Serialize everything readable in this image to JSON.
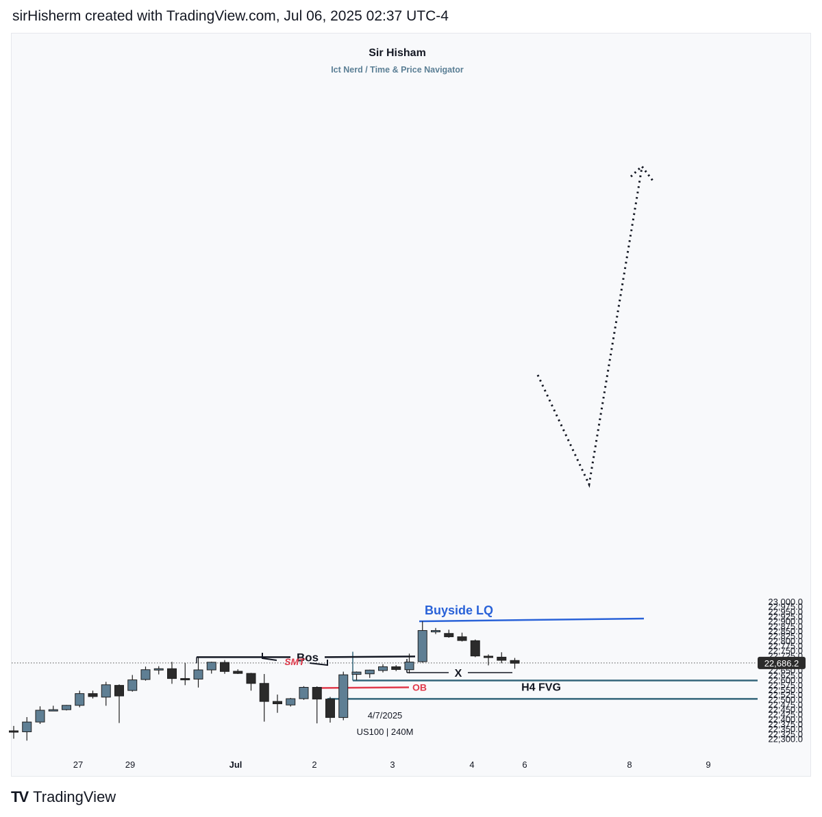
{
  "header": {
    "text": "sirHisherm created with TradingView.com, Jul 06, 2025 02:37 UTC-4"
  },
  "chart_title": {
    "title": "Sir Hisham",
    "subtitle": "Ict Nerd / Time & Price Navigator"
  },
  "footer": {
    "logo_icon": "tradingview-logo-icon",
    "brand": "TradingView"
  },
  "watermark": {
    "date": "4/7/2025",
    "symbol": "US100 | 240M"
  },
  "colors": {
    "bull": "#5f7f94",
    "bear": "#2b2b2b",
    "blue_line": "#2962d8",
    "teal_line": "#33657a",
    "red": "#e0394a"
  },
  "chart_data": {
    "type": "candlestick",
    "title": "Sir Hisham",
    "subtitle": "Ict Nerd / Time & Price Navigator",
    "ylim": [
      22280,
      23020
    ],
    "y_ticks": [
      "22,300.0",
      "22,325.0",
      "22,350.0",
      "22,375.0",
      "22,400.0",
      "22,425.0",
      "22,450.0",
      "22,475.0",
      "22,500.0",
      "22,525.0",
      "22,550.0",
      "22,575.0",
      "22,600.0",
      "22,625.0",
      "22,650.0",
      "22,675.0",
      "22,700.0",
      "22,725.0",
      "22,750.0",
      "22,775.0",
      "22,800.0",
      "22,825.0",
      "22,850.0",
      "22,875.0",
      "22,900.0",
      "22,925.0",
      "22,950.0",
      "22,975.0",
      "23,000.0"
    ],
    "x_ticks": [
      "27",
      "29",
      "Jul",
      "2",
      "3",
      "4",
      "6",
      "8",
      "9"
    ],
    "last_price": {
      "value": 22686.2,
      "label": "22,686.2"
    },
    "candles": [
      {
        "o": 22340,
        "h": 22365,
        "l": 22300,
        "c": 22335
      },
      {
        "o": 22335,
        "h": 22410,
        "l": 22290,
        "c": 22385
      },
      {
        "o": 22385,
        "h": 22465,
        "l": 22375,
        "c": 22445
      },
      {
        "o": 22445,
        "h": 22468,
        "l": 22443,
        "c": 22448
      },
      {
        "o": 22448,
        "h": 22472,
        "l": 22444,
        "c": 22470
      },
      {
        "o": 22470,
        "h": 22545,
        "l": 22460,
        "c": 22530
      },
      {
        "o": 22530,
        "h": 22545,
        "l": 22505,
        "c": 22515
      },
      {
        "o": 22512,
        "h": 22590,
        "l": 22468,
        "c": 22575
      },
      {
        "o": 22572,
        "h": 22577,
        "l": 22380,
        "c": 22518
      },
      {
        "o": 22546,
        "h": 22625,
        "l": 22540,
        "c": 22600
      },
      {
        "o": 22602,
        "h": 22668,
        "l": 22596,
        "c": 22652
      },
      {
        "o": 22651,
        "h": 22670,
        "l": 22628,
        "c": 22657
      },
      {
        "o": 22657,
        "h": 22692,
        "l": 22580,
        "c": 22607
      },
      {
        "o": 22607,
        "h": 22687,
        "l": 22573,
        "c": 22604
      },
      {
        "o": 22604,
        "h": 22712,
        "l": 22561,
        "c": 22651
      },
      {
        "o": 22651,
        "h": 22693,
        "l": 22632,
        "c": 22690
      },
      {
        "o": 22689,
        "h": 22701,
        "l": 22631,
        "c": 22643
      },
      {
        "o": 22644,
        "h": 22654,
        "l": 22630,
        "c": 22633
      },
      {
        "o": 22633,
        "h": 22636,
        "l": 22545,
        "c": 22582
      },
      {
        "o": 22582,
        "h": 22630,
        "l": 22387,
        "c": 22490
      },
      {
        "o": 22490,
        "h": 22525,
        "l": 22432,
        "c": 22478
      },
      {
        "o": 22472,
        "h": 22508,
        "l": 22464,
        "c": 22504
      },
      {
        "o": 22504,
        "h": 22568,
        "l": 22498,
        "c": 22562
      },
      {
        "o": 22562,
        "h": 22567,
        "l": 22378,
        "c": 22502
      },
      {
        "o": 22502,
        "h": 22513,
        "l": 22382,
        "c": 22408
      },
      {
        "o": 22408,
        "h": 22642,
        "l": 22394,
        "c": 22626
      },
      {
        "o": 22628,
        "h": 22643,
        "l": 22598,
        "c": 22640
      },
      {
        "o": 22631,
        "h": 22652,
        "l": 22610,
        "c": 22650
      },
      {
        "o": 22648,
        "h": 22680,
        "l": 22638,
        "c": 22667
      },
      {
        "o": 22667,
        "h": 22675,
        "l": 22645,
        "c": 22653
      },
      {
        "o": 22652,
        "h": 22734,
        "l": 22633,
        "c": 22691
      },
      {
        "o": 22693,
        "h": 22899,
        "l": 22688,
        "c": 22852
      },
      {
        "o": 22852,
        "h": 22865,
        "l": 22834,
        "c": 22852
      },
      {
        "o": 22837,
        "h": 22856,
        "l": 22815,
        "c": 22820
      },
      {
        "o": 22820,
        "h": 22841,
        "l": 22796,
        "c": 22801
      },
      {
        "o": 22800,
        "h": 22806,
        "l": 22716,
        "c": 22722
      },
      {
        "o": 22721,
        "h": 22730,
        "l": 22674,
        "c": 22715
      },
      {
        "o": 22716,
        "h": 22741,
        "l": 22685,
        "c": 22700
      },
      {
        "o": 22699,
        "h": 22712,
        "l": 22657,
        "c": 22685
      }
    ],
    "annotations": {
      "buyside": {
        "label": "Buyside LQ",
        "price": 22899
      },
      "bos": {
        "label": "Bos",
        "price": 22716
      },
      "x_mark": {
        "label": "X",
        "price": 22630
      },
      "teal_level": {
        "price": 22597
      },
      "ob": {
        "label": "OB",
        "price": 22562
      },
      "fvg": {
        "label": "H4 FVG",
        "price": 22503
      },
      "smt": {
        "label": "SMT"
      },
      "projection": {
        "points": [
          [
            22670
          ],
          [
            22560
          ],
          [
            22890
          ]
        ]
      }
    }
  }
}
